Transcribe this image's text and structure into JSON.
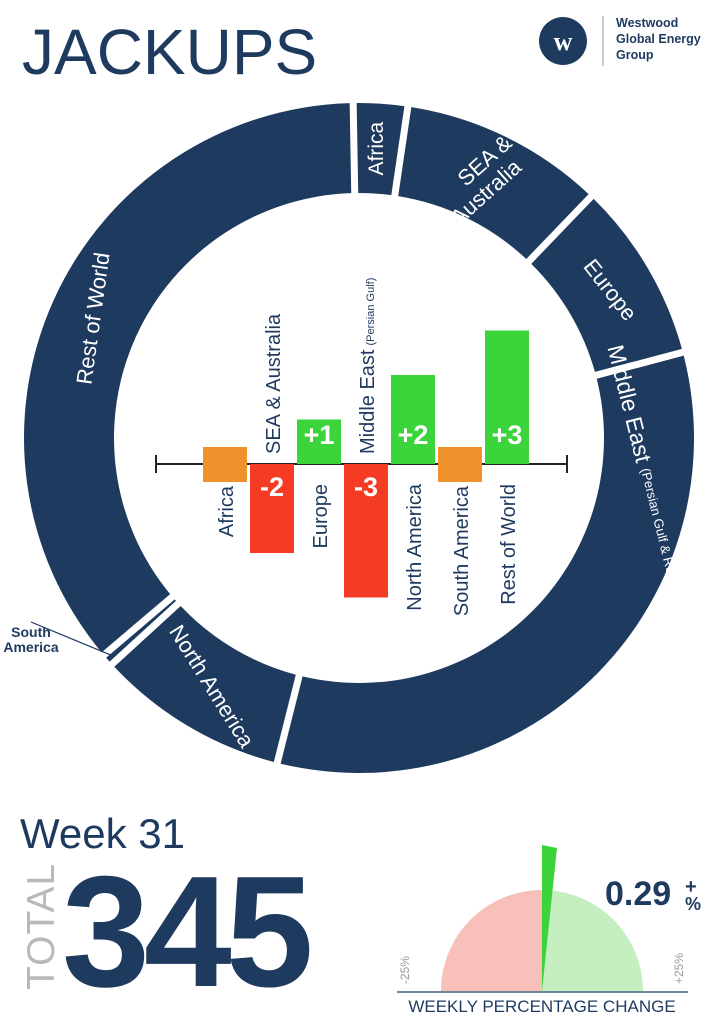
{
  "header": {
    "title": "JACKUPS",
    "logo_letter": "w",
    "company_lines": [
      "Westwood",
      "Global Energy",
      "Group"
    ]
  },
  "colors": {
    "navy": "#1e3a5f",
    "green": "#3bd43b",
    "red": "#f43b24",
    "orange": "#f0922b",
    "pink": "#f7c0b8",
    "light_green": "#c5efc0",
    "gray": "#9a9a9a"
  },
  "summary": {
    "week": "Week 31",
    "total_label": "TOTAL",
    "total_value": "345"
  },
  "gauge": {
    "value_text": "0.29",
    "value_sign": "+",
    "value_unit": "%",
    "value_percent": 0.29,
    "min_label": "-25%",
    "max_label": "+25%",
    "caption": "WEEKLY PERCENTAGE CHANGE"
  },
  "chart_data": [
    {
      "type": "pie",
      "style": "donut",
      "slices": [
        {
          "label": "Africa",
          "value": 9
        },
        {
          "label": "SEA &",
          "label2": "Australia",
          "value": 34
        },
        {
          "label": "Europe",
          "value": 30
        },
        {
          "label": "Middle East",
          "sublabel": "(Persian Gulf & Red Sea)",
          "value": 114
        },
        {
          "label": "North America",
          "value": 32
        },
        {
          "label": "South",
          "label2": "America",
          "value": 2
        },
        {
          "label": "Rest of World",
          "value": 124
        }
      ]
    },
    {
      "type": "bar",
      "categories": [
        {
          "label": "Africa"
        },
        {
          "label": "SEA & Australia"
        },
        {
          "label": "Europe"
        },
        {
          "label": "Middle East",
          "sublabel": "(Persian Gulf)"
        },
        {
          "label": "North America"
        },
        {
          "label": "South America"
        },
        {
          "label": "Rest of World"
        }
      ],
      "values": [
        0,
        -2,
        1,
        -3,
        2,
        0,
        3
      ],
      "value_labels": [
        "",
        "-2",
        "+1",
        "-3",
        "+2",
        "",
        "+3"
      ]
    }
  ]
}
